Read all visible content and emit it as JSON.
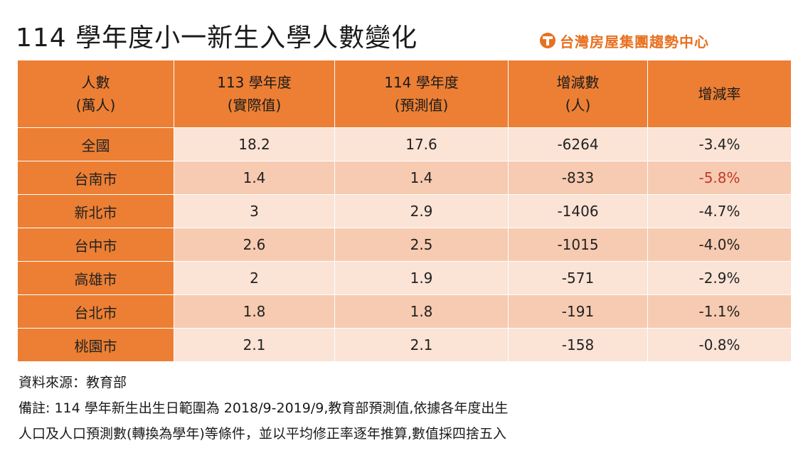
{
  "title": "114 學年度小一新生入學人數變化",
  "brand": {
    "name": "台灣房屋集團趨勢中心",
    "accent": "#e8701f"
  },
  "colors": {
    "header": "#ec7f34",
    "row_light": "#fbe3d6",
    "row_dark": "#f7cbb1",
    "highlight_red": "#c0392b"
  },
  "chart_data": {
    "type": "table",
    "title": "114 學年度小一新生入學人數變化",
    "columns": [
      {
        "line1": "人數",
        "line2": "(萬人)"
      },
      {
        "line1": "113 學年度",
        "line2": "(實際值)"
      },
      {
        "line1": "114 學年度",
        "line2": "(預測值)"
      },
      {
        "line1": "增減數",
        "line2": "(人)"
      },
      {
        "line1": "增減率",
        "line2": ""
      }
    ],
    "rows": [
      {
        "region": "全國",
        "y113": "18.2",
        "y114": "17.6",
        "change": "-6264",
        "rate": "-3.4%"
      },
      {
        "region": "台南市",
        "y113": "1.4",
        "y114": "1.4",
        "change": "-833",
        "rate": "-5.8%",
        "highlight": true
      },
      {
        "region": "新北市",
        "y113": "3",
        "y114": "2.9",
        "change": "-1406",
        "rate": "-4.7%"
      },
      {
        "region": "台中市",
        "y113": "2.6",
        "y114": "2.5",
        "change": "-1015",
        "rate": "-4.0%"
      },
      {
        "region": "高雄市",
        "y113": "2",
        "y114": "1.9",
        "change": "-571",
        "rate": "-2.9%"
      },
      {
        "region": "台北市",
        "y113": "1.8",
        "y114": "1.8",
        "change": "-191",
        "rate": "-1.1%"
      },
      {
        "region": "桃園市",
        "y113": "2.1",
        "y114": "2.1",
        "change": "-158",
        "rate": "-0.8%"
      }
    ]
  },
  "notes": {
    "source": "資料來源：教育部",
    "remark_line1": "備註: 114 學年新生出生日範圍為 2018/9-2019/9,教育部預測值,依據各年度出生",
    "remark_line2": "人口及人口預測數(轉換為學年)等條件，並以平均修正率逐年推算,數值採四捨五入"
  }
}
